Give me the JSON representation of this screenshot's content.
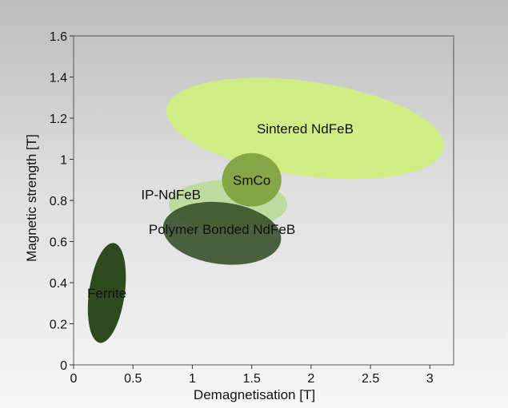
{
  "chart_data": {
    "type": "scatter",
    "title": "",
    "xlabel": "Demagnetisation [T]",
    "ylabel": "Magnetic strength [T]",
    "xlim": [
      0,
      3.2
    ],
    "ylim": [
      0,
      1.6
    ],
    "xticks": [
      "0",
      "0.5",
      "1",
      "1.5",
      "2",
      "2.5",
      "3"
    ],
    "yticks": [
      "0",
      "0.2",
      "0.4",
      "0.6",
      "0.8",
      "1",
      "1.2",
      "1.4",
      "1.6"
    ],
    "grid": false,
    "legend": "none",
    "regions": [
      {
        "label": "Sintered NdFeB",
        "cx": 1.95,
        "cy": 1.15,
        "rx": 1.18,
        "ry": 0.23,
        "rotation_deg": 8,
        "color": "#cfee7f",
        "opacity": 0.95
      },
      {
        "label": "IP-NdFeB",
        "cx": 1.3,
        "cy": 0.78,
        "rx": 0.5,
        "ry": 0.12,
        "rotation_deg": 0,
        "color": "#b3d98a",
        "opacity": 0.75
      },
      {
        "label": "Polymer Bonded NdFeB",
        "cx": 1.25,
        "cy": 0.64,
        "rx": 0.5,
        "ry": 0.15,
        "rotation_deg": 7,
        "color": "#36512a",
        "opacity": 0.9
      },
      {
        "label": "SmCo",
        "cx": 1.5,
        "cy": 0.9,
        "rx": 0.25,
        "ry": 0.13,
        "rotation_deg": 0,
        "color": "#7fa33f",
        "opacity": 0.95
      },
      {
        "label": "Ferrite",
        "cx": 0.28,
        "cy": 0.35,
        "rx": 0.15,
        "ry": 0.245,
        "rotation_deg": 8,
        "color": "#2e4a1f",
        "opacity": 1
      }
    ]
  }
}
